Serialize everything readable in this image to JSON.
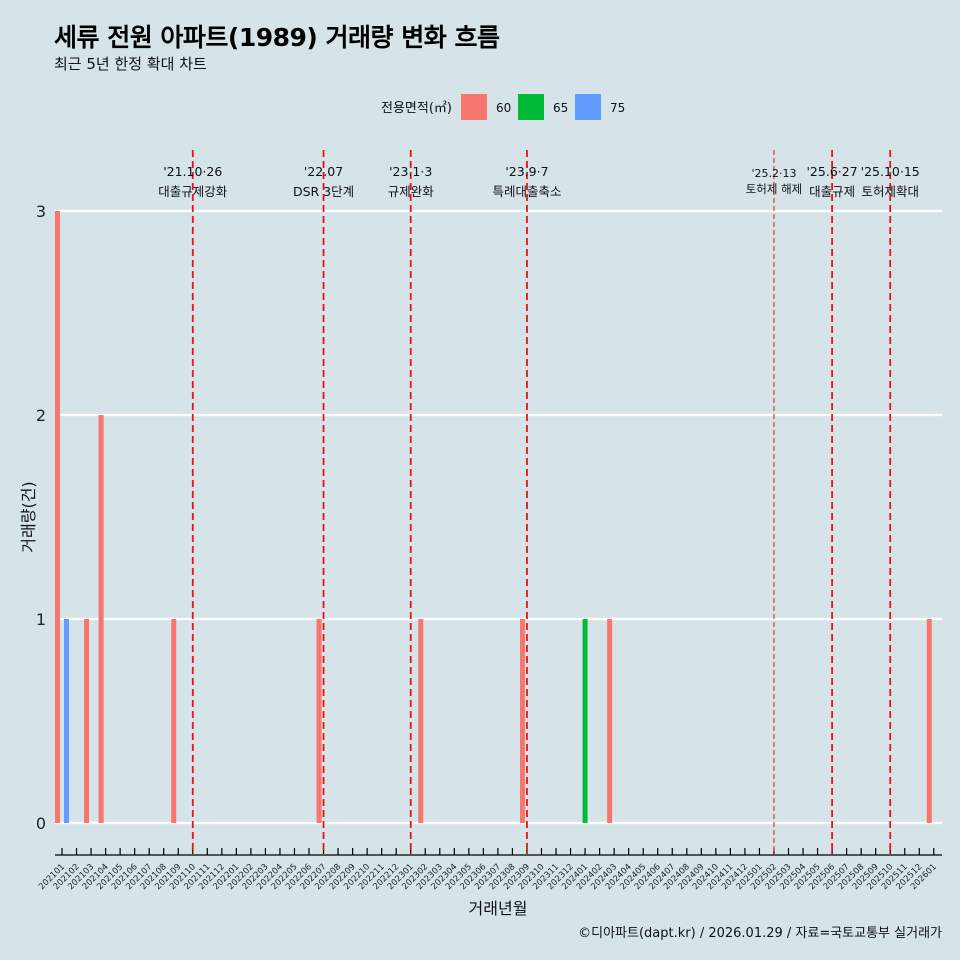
{
  "title": "세류 전원 아파트(1989) 거래량 변화 흐름",
  "subtitle": "최근 5년 한정 확대 차트",
  "caption": "©디아파트(dapt.kr) / 2026.01.29 / 자료=국토교통부 실거래가",
  "chart_data": {
    "type": "bar",
    "xlabel": "거래년월",
    "ylabel": "거래량(건)",
    "ylim": [
      0,
      3
    ],
    "yticks": [
      0,
      1,
      2,
      3
    ],
    "grid": true,
    "legend_title": "전용면적(㎡)",
    "legend_position": "top",
    "categories": [
      "202101",
      "202102",
      "202103",
      "202104",
      "202105",
      "202106",
      "202107",
      "202108",
      "202109",
      "202110",
      "202111",
      "202112",
      "202201",
      "202202",
      "202203",
      "202204",
      "202205",
      "202206",
      "202207",
      "202208",
      "202209",
      "202210",
      "202211",
      "202212",
      "202301",
      "202302",
      "202303",
      "202304",
      "202305",
      "202306",
      "202307",
      "202308",
      "202309",
      "202310",
      "202311",
      "202312",
      "202401",
      "202402",
      "202403",
      "202404",
      "202405",
      "202406",
      "202407",
      "202408",
      "202409",
      "202410",
      "202411",
      "202412",
      "202501",
      "202502",
      "202503",
      "202504",
      "202505",
      "202506",
      "202507",
      "202508",
      "202509",
      "202510",
      "202511",
      "202512",
      "202601"
    ],
    "series": [
      {
        "name": "60",
        "color": "#f8766d",
        "points": [
          [
            "202101",
            3
          ],
          [
            "202103",
            1
          ],
          [
            "202104",
            2
          ],
          [
            "202109",
            1
          ],
          [
            "202207",
            1
          ],
          [
            "202302",
            1
          ],
          [
            "202309",
            1
          ],
          [
            "202403",
            1
          ],
          [
            "202601",
            1
          ]
        ]
      },
      {
        "name": "65",
        "color": "#00ba38",
        "points": [
          [
            "202401",
            1
          ]
        ]
      },
      {
        "name": "75",
        "color": "#619cff",
        "points": [
          [
            "202101",
            1
          ]
        ]
      }
    ],
    "annotations": [
      {
        "month": "202110",
        "date": "'21.10·26",
        "label": "대출규제강화",
        "style": "bold"
      },
      {
        "month": "202207",
        "date": "'22.07",
        "label": "DSR 3단계",
        "style": "bold"
      },
      {
        "month": "202301",
        "date": "'23.1·3",
        "label": "규제완화",
        "style": "bold"
      },
      {
        "month": "202309",
        "date": "'23.9·7",
        "label": "특례대출축소",
        "style": "bold"
      },
      {
        "month": "202502",
        "date": "'25.2·13",
        "label": "토허제 해제",
        "style": "thin"
      },
      {
        "month": "202506",
        "date": "'25.6·27",
        "label": "대출규제",
        "style": "bold"
      },
      {
        "month": "202510",
        "date": "'25.10·15",
        "label": "토허제확대",
        "style": "bold"
      }
    ]
  }
}
